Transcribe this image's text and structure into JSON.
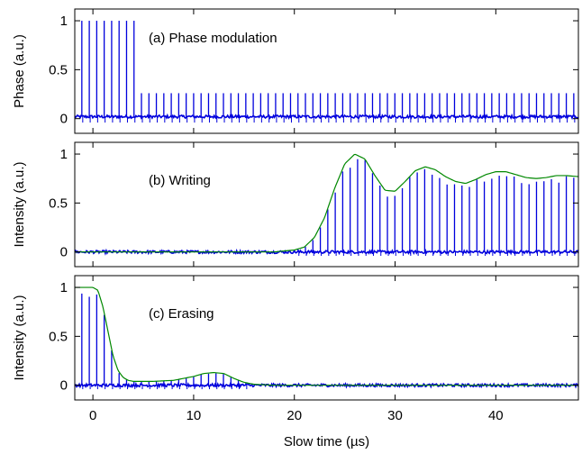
{
  "chart_data": {
    "type": "line",
    "xlabel": "Slow time (µs)",
    "xlim": [
      -1.8,
      48.2
    ],
    "x_ticks": [
      "0",
      "10",
      "20",
      "30",
      "40"
    ],
    "x_tick_values": [
      0,
      10,
      20,
      30,
      40
    ],
    "colors": {
      "data": "#0000dd",
      "fit": "#008800"
    },
    "panels": [
      {
        "id": "a",
        "title": "(a) Phase modulation",
        "ylabel": "Phase (a.u.)",
        "ylim": [
          -0.15,
          1.12
        ],
        "y_ticks": [
          "0",
          "0.5",
          "1"
        ],
        "y_tick_values": [
          0,
          0.5,
          1
        ],
        "pulse_period": 0.74,
        "pulse_start": -1.1,
        "high_until": 4.2,
        "pulse_amplitude_high": 1.0,
        "pulse_amplitude_low": 0.26,
        "baseline": 0.02,
        "envelope": []
      },
      {
        "id": "b",
        "title": "(b) Writing",
        "ylabel": "Intensity (a.u.)",
        "ylim": [
          -0.15,
          1.12
        ],
        "y_ticks": [
          "0",
          "0.5",
          "1"
        ],
        "y_tick_values": [
          0,
          0.5,
          1
        ],
        "pulse_period": 0.74,
        "pulse_start": -1.1,
        "baseline": 0.0,
        "envelope": [
          [
            -1.8,
            0.0
          ],
          [
            18,
            0.0
          ],
          [
            20,
            0.02
          ],
          [
            21,
            0.05
          ],
          [
            22,
            0.15
          ],
          [
            23,
            0.35
          ],
          [
            24,
            0.65
          ],
          [
            25,
            0.9
          ],
          [
            26,
            1.0
          ],
          [
            27,
            0.95
          ],
          [
            28,
            0.78
          ],
          [
            29,
            0.63
          ],
          [
            30,
            0.62
          ],
          [
            31,
            0.72
          ],
          [
            32,
            0.83
          ],
          [
            33,
            0.87
          ],
          [
            34,
            0.84
          ],
          [
            35,
            0.77
          ],
          [
            36,
            0.72
          ],
          [
            37,
            0.7
          ],
          [
            38,
            0.74
          ],
          [
            39,
            0.79
          ],
          [
            40,
            0.82
          ],
          [
            41,
            0.82
          ],
          [
            42,
            0.79
          ],
          [
            43,
            0.76
          ],
          [
            44,
            0.75
          ],
          [
            45,
            0.76
          ],
          [
            46,
            0.78
          ],
          [
            47,
            0.78
          ],
          [
            48.2,
            0.77
          ]
        ]
      },
      {
        "id": "c",
        "title": "(c) Erasing",
        "ylabel": "Intensity (a.u.)",
        "ylim": [
          -0.15,
          1.12
        ],
        "y_ticks": [
          "0",
          "0.5",
          "1"
        ],
        "y_tick_values": [
          0,
          0.5,
          1
        ],
        "pulse_period": 0.74,
        "pulse_start": -1.1,
        "baseline": 0.0,
        "envelope": [
          [
            -1.8,
            1.0
          ],
          [
            0.0,
            1.0
          ],
          [
            0.5,
            0.97
          ],
          [
            1.0,
            0.8
          ],
          [
            1.5,
            0.55
          ],
          [
            2.0,
            0.3
          ],
          [
            2.5,
            0.15
          ],
          [
            3.0,
            0.08
          ],
          [
            3.5,
            0.05
          ],
          [
            4.0,
            0.04
          ],
          [
            6.0,
            0.04
          ],
          [
            8.0,
            0.05
          ],
          [
            10.0,
            0.09
          ],
          [
            11.0,
            0.12
          ],
          [
            12.0,
            0.13
          ],
          [
            13.0,
            0.12
          ],
          [
            14.0,
            0.07
          ],
          [
            15.0,
            0.03
          ],
          [
            16.0,
            0.01
          ],
          [
            18.0,
            0.0
          ],
          [
            48.2,
            0.0
          ]
        ]
      }
    ]
  }
}
